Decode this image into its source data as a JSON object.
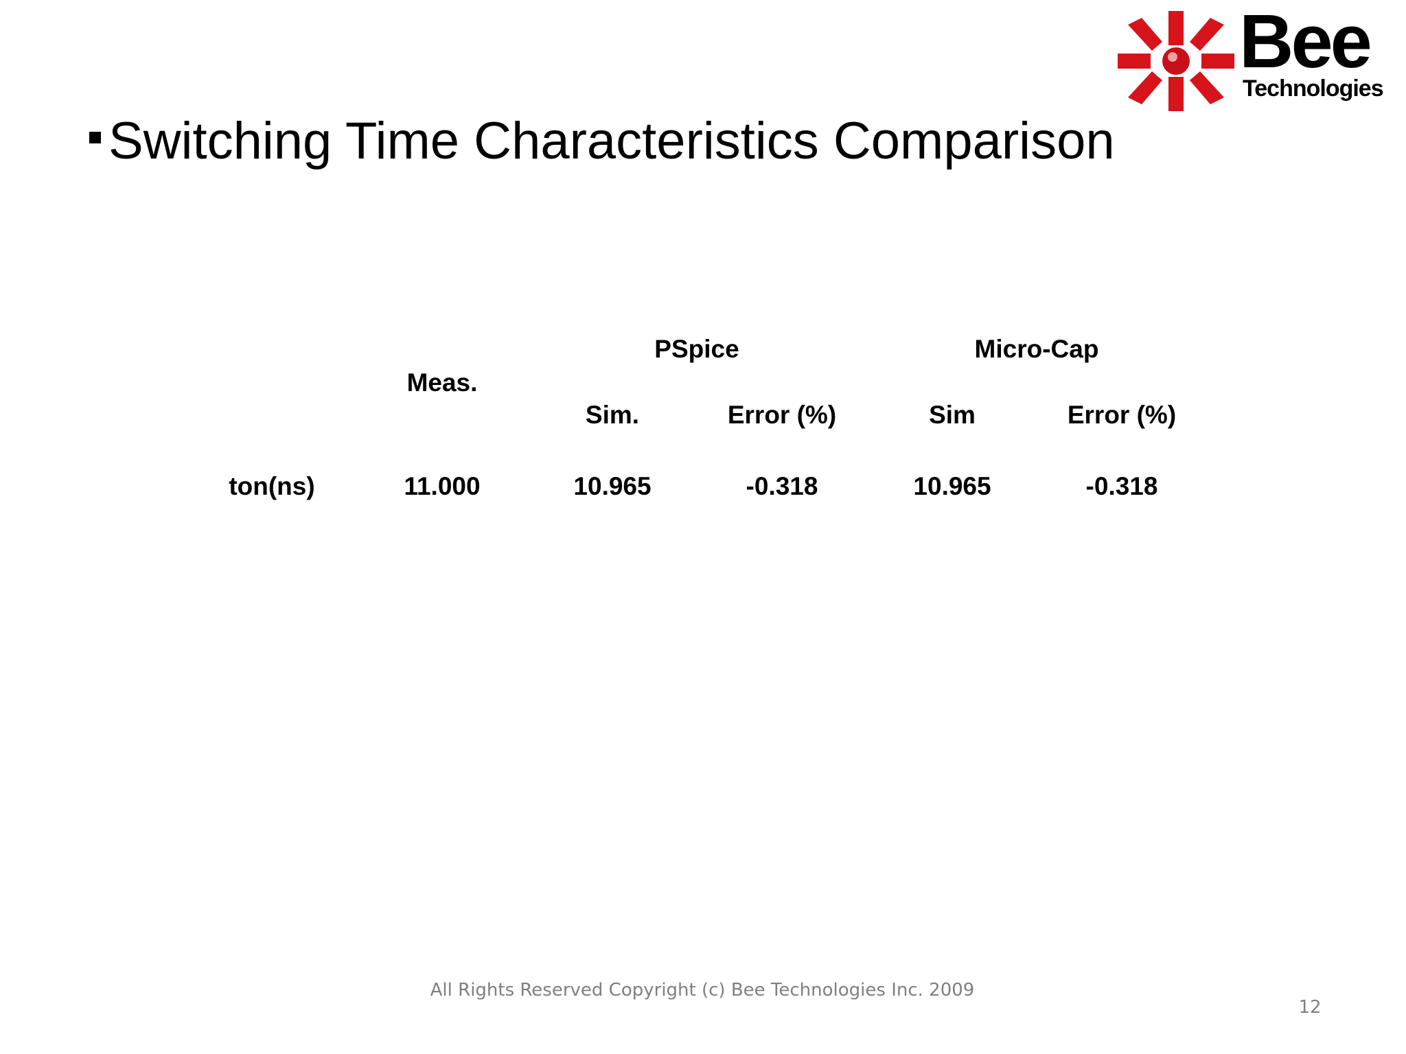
{
  "header": {
    "logo": {
      "name": "Bee",
      "tagline": "Technologies"
    }
  },
  "title": "Switching Time Characteristics Comparison",
  "table": {
    "groups": [
      "PSpice",
      "Micro-Cap"
    ],
    "columns": [
      "Meas.",
      "Sim.",
      "Error (%)",
      "Sim",
      "Error (%)"
    ],
    "rows": [
      [
        "ton(ns)",
        "11.000",
        "10.965",
        "-0.318",
        "10.965",
        "-0.318"
      ]
    ]
  },
  "footer": {
    "copyright": "All Rights Reserved Copyright (c) Bee Technologies Inc. 2009",
    "page": "12"
  }
}
